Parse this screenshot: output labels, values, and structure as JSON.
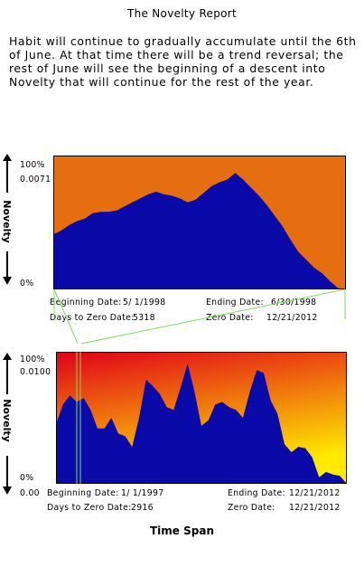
{
  "report": {
    "title": "The Novelty Report",
    "summary": "Habit will continue to gradually accumulate until the 6th of June.  At that time there will be a trend reversal; the rest of June will see the beginning of a descent into Novelty that will continue for the rest of the year."
  },
  "colors": {
    "fill": "#0a0aa8",
    "top_bg": "#e46e10",
    "bottom_bg_top": "#e0001a",
    "bottom_bg_bottom": "#ffea00",
    "connector": "#7ddc5a"
  },
  "top_chart": {
    "ylabel": "Novelty",
    "ticks": [
      "100%",
      "0.0071",
      "0%"
    ],
    "labels": {
      "begin_label": "Beginning Date:",
      "begin_value": "5/ 1/1998",
      "end_label": "Ending Date:",
      "end_value": "6/30/1998",
      "days_label": "Days to Zero Date:",
      "days_value": "5318",
      "zero_label": "Zero Date:",
      "zero_value": "12/21/2012"
    }
  },
  "bottom_chart": {
    "ylabel": "Novelty",
    "ticks": [
      "100%",
      "0.0100",
      "0%"
    ],
    "origin_label": "0.00",
    "labels": {
      "begin_label": "Beginning Date:",
      "begin_value": "1/ 1/1997",
      "end_label": "Ending Date:",
      "end_value": "12/21/2012",
      "days_label": "Days to Zero Date:",
      "days_value": "2916",
      "zero_label": "Zero Date:",
      "zero_value": "12/21/2012"
    }
  },
  "xlabel": "Time Span",
  "chart_data": [
    {
      "type": "area",
      "title": "",
      "xlabel": "",
      "ylabel": "Novelty",
      "ylim": [
        0,
        1
      ],
      "grid": false,
      "x_range": [
        "5/1/1998",
        "6/30/1998"
      ],
      "y_ticks": [
        "0%",
        "0.0071",
        "100%"
      ],
      "values": [
        0.41,
        0.44,
        0.48,
        0.51,
        0.53,
        0.57,
        0.58,
        0.58,
        0.59,
        0.62,
        0.65,
        0.68,
        0.71,
        0.73,
        0.71,
        0.7,
        0.68,
        0.65,
        0.67,
        0.72,
        0.77,
        0.8,
        0.82,
        0.87,
        0.82,
        0.76,
        0.7,
        0.63,
        0.55,
        0.47,
        0.37,
        0.28,
        0.22,
        0.16,
        0.12,
        0.06,
        0.01,
        0.0
      ]
    },
    {
      "type": "area",
      "title": "",
      "xlabel": "Time Span",
      "ylabel": "Novelty",
      "ylim": [
        0,
        1
      ],
      "grid": false,
      "x_range": [
        "1/1/1997",
        "12/21/2012"
      ],
      "y_ticks": [
        "0%",
        "0.0100",
        "100%"
      ],
      "values": [
        0.45,
        0.6,
        0.67,
        0.62,
        0.65,
        0.56,
        0.42,
        0.42,
        0.5,
        0.38,
        0.36,
        0.28,
        0.5,
        0.79,
        0.74,
        0.68,
        0.58,
        0.56,
        0.73,
        0.91,
        0.7,
        0.44,
        0.48,
        0.6,
        0.62,
        0.58,
        0.56,
        0.5,
        0.7,
        0.86,
        0.84,
        0.63,
        0.53,
        0.3,
        0.24,
        0.28,
        0.27,
        0.2,
        0.05,
        0.09,
        0.07,
        0.06,
        0.0
      ]
    }
  ]
}
